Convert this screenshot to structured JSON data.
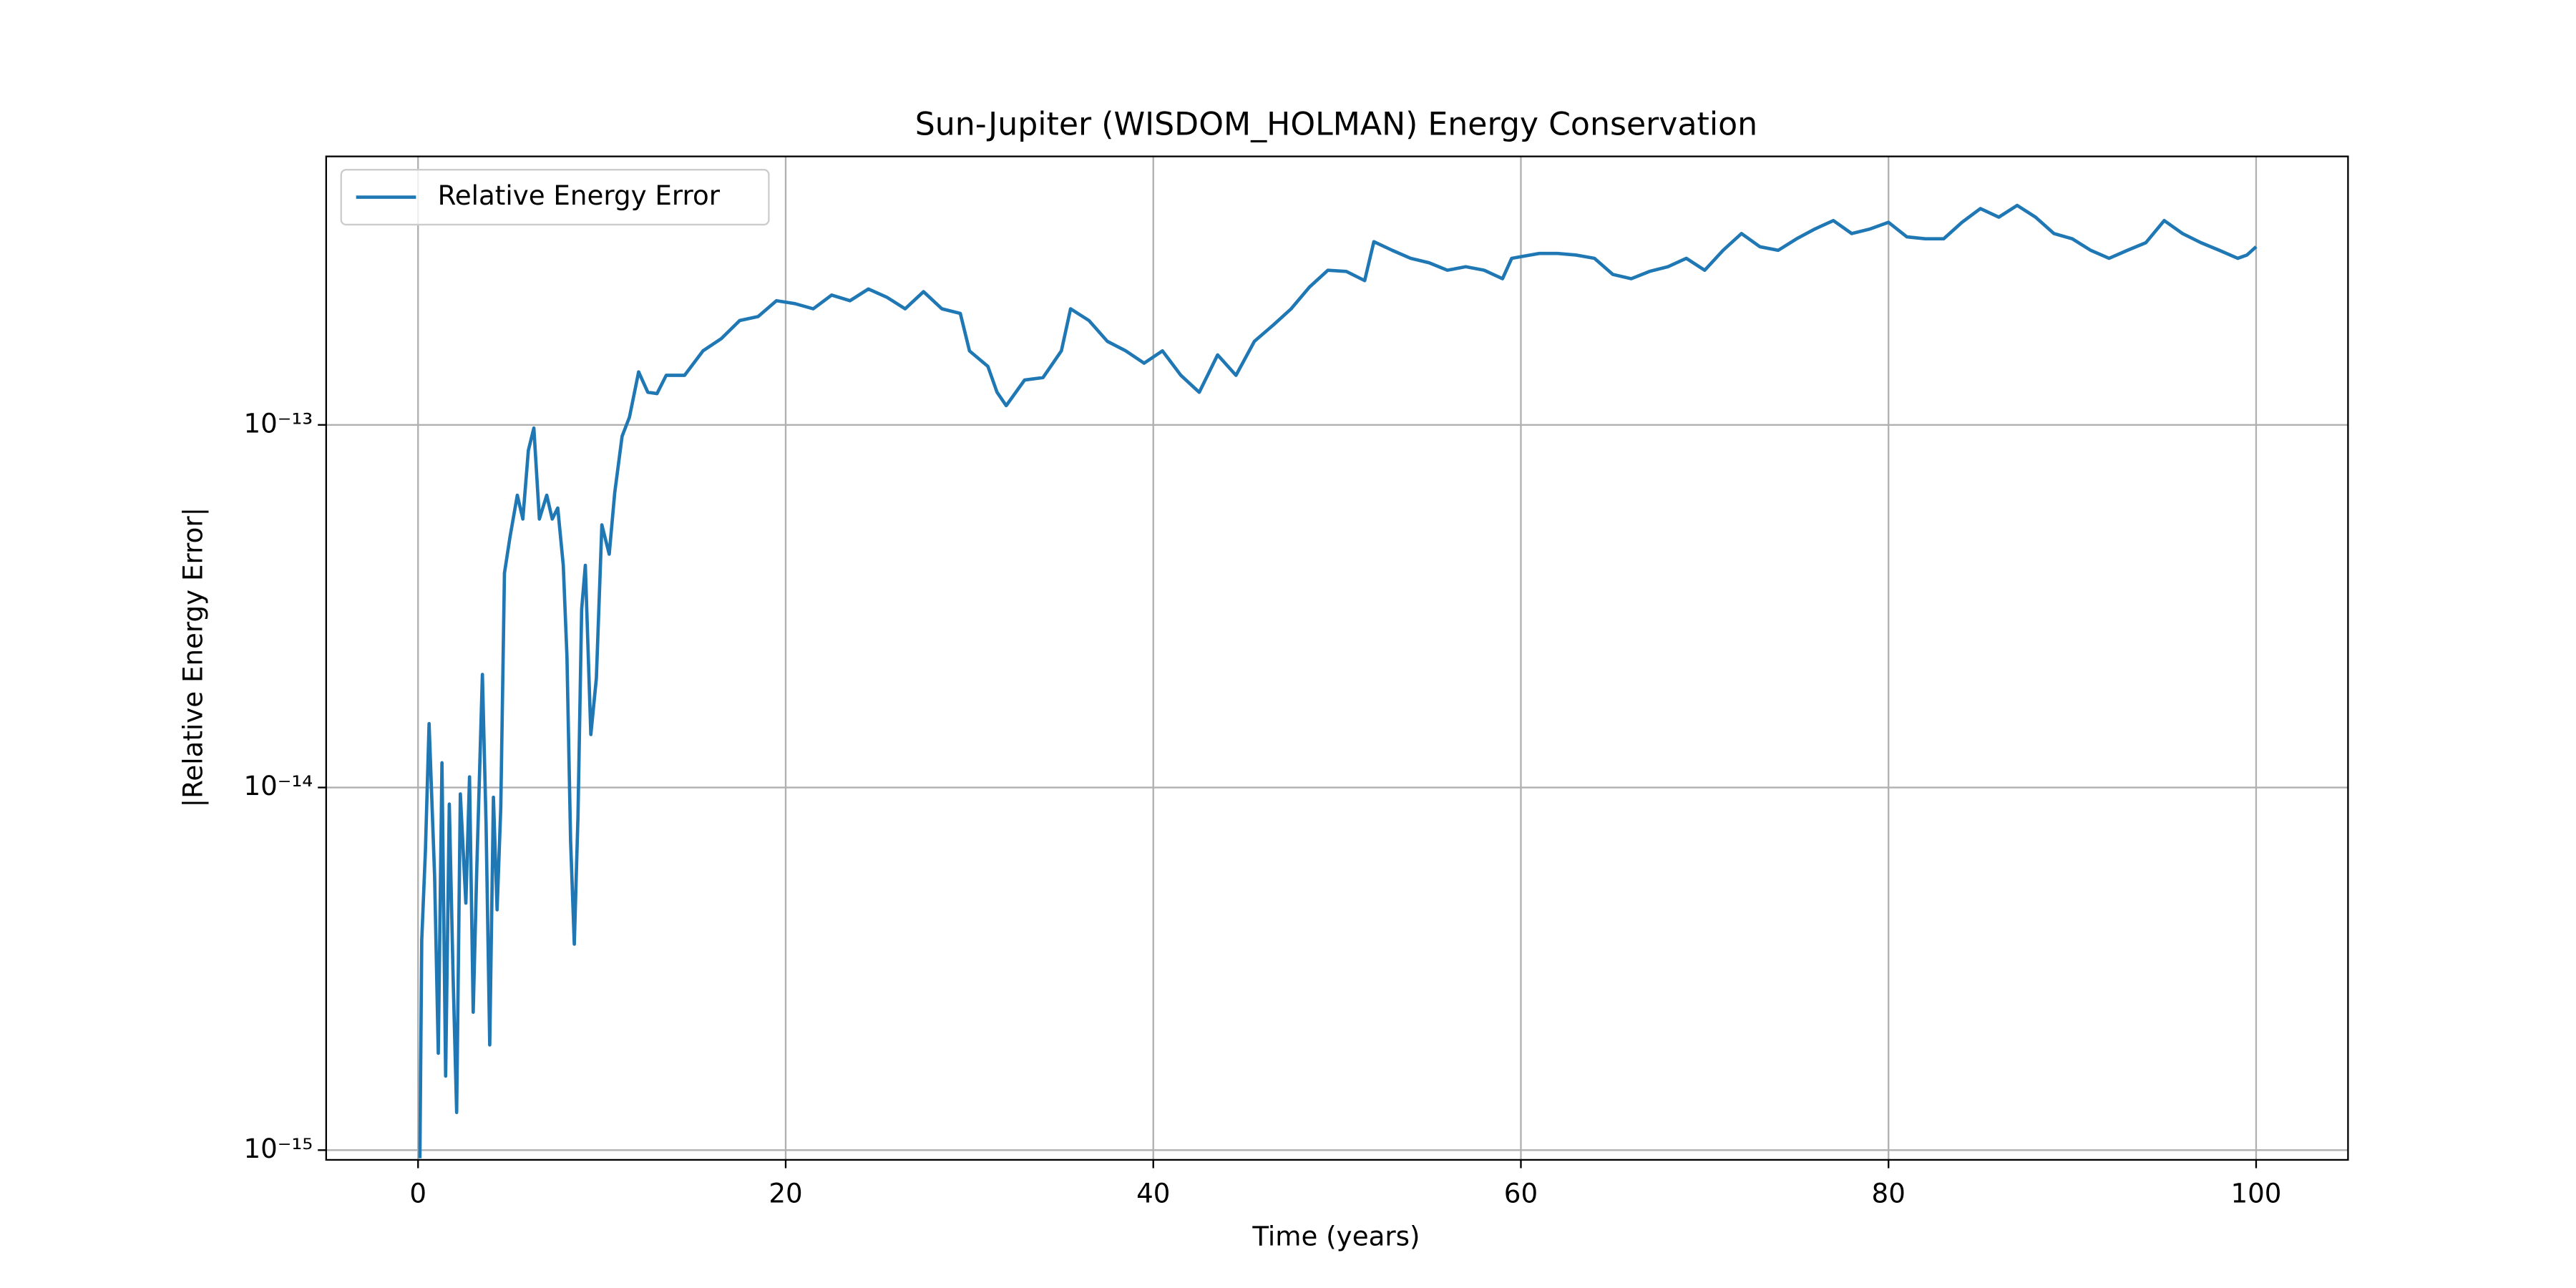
{
  "chart_data": {
    "type": "line",
    "title": "Sun-Jupiter (WISDOM_HOLMAN) Energy Conservation",
    "xlabel": "Time (years)",
    "ylabel": "|Relative Energy Error|",
    "x": [
      0.1,
      0.2,
      0.4,
      0.6,
      0.9,
      1.1,
      1.3,
      1.5,
      1.7,
      1.9,
      2.1,
      2.3,
      2.6,
      2.8,
      3.0,
      3.2,
      3.5,
      3.7,
      3.9,
      4.1,
      4.3,
      4.5,
      4.7,
      5.0,
      5.4,
      5.7,
      6.0,
      6.3,
      6.6,
      7.0,
      7.3,
      7.6,
      7.9,
      8.1,
      8.3,
      8.5,
      8.7,
      8.9,
      9.1,
      9.4,
      9.7,
      10.0,
      10.4,
      10.7,
      11.1,
      11.5,
      12.0,
      12.5,
      13.0,
      13.5,
      14.5,
      15.5,
      16.5,
      17.5,
      18.5,
      19.5,
      20.5,
      21.5,
      22.5,
      23.5,
      24.5,
      25.5,
      26.5,
      27.5,
      28.5,
      29.5,
      30.0,
      31.0,
      31.5,
      32.0,
      33.0,
      34.0,
      35.0,
      35.5,
      36.5,
      37.5,
      38.5,
      39.5,
      40.5,
      41.5,
      42.5,
      43.5,
      44.5,
      45.5,
      46.5,
      47.5,
      48.5,
      49.5,
      50.5,
      51.5,
      52.0,
      53.0,
      54.0,
      55.0,
      56.0,
      57.0,
      58.0,
      59.0,
      59.5,
      61.0,
      62.0,
      63.0,
      64.0,
      65.0,
      66.0,
      67.0,
      68.0,
      69.0,
      70.0,
      71.0,
      72.0,
      73.0,
      74.0,
      75.0,
      76.0,
      77.0,
      78.0,
      79.0,
      80.0,
      81.0,
      82.0,
      83.0,
      84.0,
      85.0,
      86.0,
      87.0,
      88.0,
      89.0,
      90.0,
      91.0,
      92.0,
      93.0,
      94.0,
      95.0,
      96.0,
      97.0,
      98.0,
      99.0,
      99.5,
      100.0
    ],
    "series": [
      {
        "name": "Relative Energy Error",
        "color": "#1f77b4",
        "values": [
          9.5e-16,
          3.8e-15,
          6.7e-15,
          1.5e-14,
          5.7e-15,
          1.85e-15,
          1.17e-14,
          1.6e-15,
          9e-15,
          3.1e-15,
          1.27e-15,
          9.6e-15,
          4.8e-15,
          1.07e-14,
          2.4e-15,
          6.1e-15,
          2.05e-14,
          7.9e-15,
          1.95e-15,
          9.4e-15,
          4.6e-15,
          8.8e-15,
          3.9e-14,
          4.9e-14,
          6.4e-14,
          5.5e-14,
          8.5e-14,
          9.8e-14,
          5.5e-14,
          6.4e-14,
          5.5e-14,
          5.9e-14,
          4.1e-14,
          2.3e-14,
          7.1e-15,
          3.7e-15,
          8.3e-15,
          3.1e-14,
          4.1e-14,
          1.4e-14,
          2e-14,
          5.3e-14,
          4.4e-14,
          6.5e-14,
          9.3e-14,
          1.05e-13,
          1.4e-13,
          1.23e-13,
          1.22e-13,
          1.37e-13,
          1.37e-13,
          1.6e-13,
          1.73e-13,
          1.94e-13,
          1.99e-13,
          2.2e-13,
          2.16e-13,
          2.09e-13,
          2.28e-13,
          2.2e-13,
          2.37e-13,
          2.25e-13,
          2.09e-13,
          2.33e-13,
          2.09e-13,
          2.03e-13,
          1.6e-13,
          1.45e-13,
          1.23e-13,
          1.13e-13,
          1.33e-13,
          1.35e-13,
          1.6e-13,
          2.09e-13,
          1.94e-13,
          1.7e-13,
          1.6e-13,
          1.48e-13,
          1.6e-13,
          1.37e-13,
          1.23e-13,
          1.56e-13,
          1.37e-13,
          1.7e-13,
          1.88e-13,
          2.09e-13,
          2.4e-13,
          2.67e-13,
          2.65e-13,
          2.5e-13,
          3.2e-13,
          3.03e-13,
          2.88e-13,
          2.8e-13,
          2.67e-13,
          2.73e-13,
          2.67e-13,
          2.53e-13,
          2.88e-13,
          2.97e-13,
          2.97e-13,
          2.94e-13,
          2.88e-13,
          2.6e-13,
          2.53e-13,
          2.65e-13,
          2.73e-13,
          2.88e-13,
          2.67e-13,
          3.03e-13,
          3.37e-13,
          3.1e-13,
          3.03e-13,
          3.26e-13,
          3.47e-13,
          3.66e-13,
          3.37e-13,
          3.47e-13,
          3.62e-13,
          3.3e-13,
          3.26e-13,
          3.26e-13,
          3.62e-13,
          3.95e-13,
          3.74e-13,
          4.03e-13,
          3.74e-13,
          3.37e-13,
          3.26e-13,
          3.03e-13,
          2.88e-13,
          3.03e-13,
          3.18e-13,
          3.66e-13,
          3.37e-13,
          3.18e-13,
          3.03e-13,
          2.88e-13,
          2.94e-13,
          3.1e-13
        ]
      }
    ],
    "xlim": [
      -5,
      105
    ],
    "xticks": [
      0,
      20,
      40,
      60,
      80,
      100
    ],
    "ylim": [
      9.4e-16,
      5.5e-13
    ],
    "yscale": "log",
    "yticks": [
      {
        "value": 1e-15,
        "label": "10⁻¹⁵"
      },
      {
        "value": 1e-14,
        "label": "10⁻¹⁴"
      },
      {
        "value": 1e-13,
        "label": "10⁻¹³"
      }
    ],
    "grid": true,
    "legend": "upper left"
  }
}
